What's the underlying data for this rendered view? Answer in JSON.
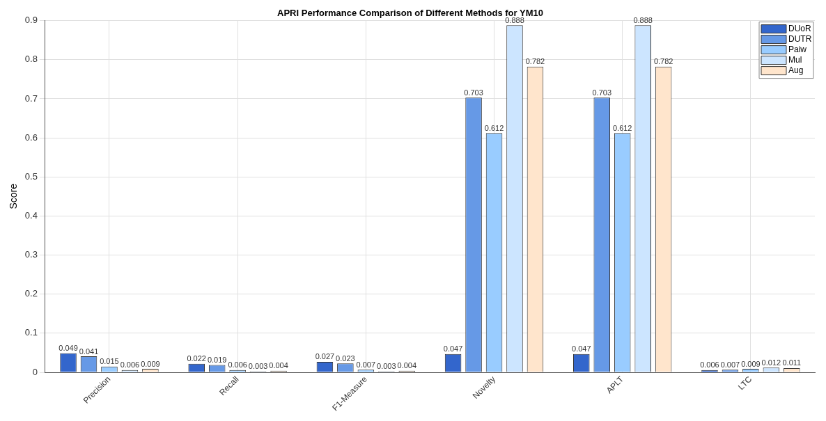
{
  "chart_data": {
    "type": "bar",
    "title": "APRI Performance Comparison of Different Methods for YM10",
    "ylabel": "Score",
    "categories": [
      "Precision",
      "Recall",
      "F1-Measure",
      "Novelty",
      "APLT",
      "LTC"
    ],
    "series": [
      {
        "name": "DUoR",
        "color": "#3366cc",
        "values": [
          0.049,
          0.022,
          0.027,
          0.047,
          0.047,
          0.006
        ]
      },
      {
        "name": "DUTR",
        "color": "#6699e6",
        "values": [
          0.041,
          0.019,
          0.023,
          0.703,
          0.703,
          0.007
        ]
      },
      {
        "name": "Paiw",
        "color": "#99ccff",
        "values": [
          0.015,
          0.006,
          0.007,
          0.612,
          0.612,
          0.009
        ]
      },
      {
        "name": "Mul",
        "color": "#cce5ff",
        "values": [
          0.006,
          0.003,
          0.003,
          0.888,
          0.888,
          0.012
        ]
      },
      {
        "name": "Aug",
        "color": "#ffe5cc",
        "values": [
          0.009,
          0.004,
          0.004,
          0.782,
          0.782,
          0.011
        ]
      }
    ],
    "ylim": [
      0,
      0.9
    ],
    "yticks": [
      0,
      0.1,
      0.2,
      0.3,
      0.4,
      0.5,
      0.6,
      0.7,
      0.8,
      0.9
    ],
    "grid": true,
    "legend": "top right",
    "data_labels": true
  }
}
